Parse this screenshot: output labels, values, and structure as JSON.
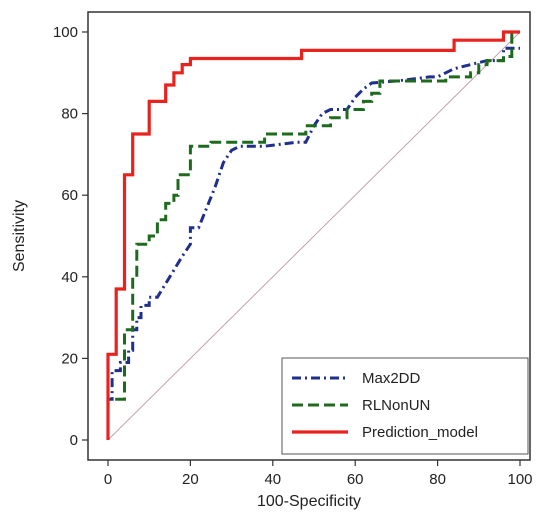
{
  "chart_data": {
    "type": "line",
    "title": "",
    "xlabel": "100-Specificity",
    "ylabel": "Sensitivity",
    "xlim": [
      0,
      100
    ],
    "ylim": [
      0,
      100
    ],
    "x_ticks": [
      "0",
      "20",
      "40",
      "60",
      "80",
      "100"
    ],
    "y_ticks": [
      "0",
      "20",
      "40",
      "60",
      "80",
      "100"
    ],
    "grid": false,
    "legend_position": "bottom-right",
    "reference_line": {
      "x": [
        0,
        100
      ],
      "y": [
        0,
        100
      ],
      "color": "#c4a0a8"
    },
    "series": [
      {
        "name": "Max2DD",
        "color": "#1f2f8c",
        "dash": "dash-dot",
        "points": [
          [
            0,
            0
          ],
          [
            0,
            10
          ],
          [
            1,
            10
          ],
          [
            1,
            17
          ],
          [
            3,
            17
          ],
          [
            3,
            19
          ],
          [
            5,
            19
          ],
          [
            5,
            22
          ],
          [
            6,
            22
          ],
          [
            6,
            27
          ],
          [
            7,
            27
          ],
          [
            7,
            30
          ],
          [
            8,
            30
          ],
          [
            8,
            33
          ],
          [
            10,
            33
          ],
          [
            10,
            35
          ],
          [
            12,
            35
          ],
          [
            15,
            40
          ],
          [
            18,
            45
          ],
          [
            20,
            48
          ],
          [
            20,
            52
          ],
          [
            22,
            52
          ],
          [
            26,
            62
          ],
          [
            28,
            68
          ],
          [
            30,
            71
          ],
          [
            32,
            72
          ],
          [
            38,
            72
          ],
          [
            46,
            73
          ],
          [
            48,
            73
          ],
          [
            50,
            77
          ],
          [
            52,
            80
          ],
          [
            54,
            81
          ],
          [
            58,
            81
          ],
          [
            60,
            84
          ],
          [
            62,
            86
          ],
          [
            64,
            87.5
          ],
          [
            70,
            88
          ],
          [
            78,
            89
          ],
          [
            80,
            89
          ],
          [
            84,
            91
          ],
          [
            88,
            92
          ],
          [
            92,
            93
          ],
          [
            96,
            93
          ],
          [
            96,
            96
          ],
          [
            98,
            96
          ],
          [
            100,
            96
          ]
        ]
      },
      {
        "name": "RLNonUN",
        "color": "#1e6b1e",
        "dash": "dashed",
        "points": [
          [
            0,
            0
          ],
          [
            0,
            10
          ],
          [
            4,
            10
          ],
          [
            4,
            27
          ],
          [
            6,
            27
          ],
          [
            6,
            40
          ],
          [
            7,
            40
          ],
          [
            7,
            48
          ],
          [
            10,
            48
          ],
          [
            10,
            50
          ],
          [
            12,
            50
          ],
          [
            12,
            54
          ],
          [
            14,
            54
          ],
          [
            14,
            58
          ],
          [
            16,
            58
          ],
          [
            16,
            60
          ],
          [
            17,
            60
          ],
          [
            17,
            65
          ],
          [
            20,
            65
          ],
          [
            20,
            72
          ],
          [
            25,
            72
          ],
          [
            25,
            73
          ],
          [
            38,
            73
          ],
          [
            38,
            75
          ],
          [
            48,
            75
          ],
          [
            48,
            77
          ],
          [
            54,
            77
          ],
          [
            54,
            79
          ],
          [
            58,
            79
          ],
          [
            58,
            81
          ],
          [
            62,
            81
          ],
          [
            62,
            83
          ],
          [
            64,
            83
          ],
          [
            64,
            85
          ],
          [
            66,
            85
          ],
          [
            66,
            88
          ],
          [
            82,
            88
          ],
          [
            82,
            89
          ],
          [
            88,
            89
          ],
          [
            88,
            90
          ],
          [
            90,
            90
          ],
          [
            90,
            92
          ],
          [
            92,
            92
          ],
          [
            92,
            93
          ],
          [
            96,
            93
          ],
          [
            96,
            94
          ],
          [
            98,
            94
          ],
          [
            98,
            100
          ],
          [
            100,
            100
          ]
        ]
      },
      {
        "name": "Prediction_model",
        "color": "#e8231e",
        "dash": "solid",
        "points": [
          [
            0,
            0
          ],
          [
            0,
            21
          ],
          [
            2,
            21
          ],
          [
            2,
            37
          ],
          [
            4,
            37
          ],
          [
            4,
            65
          ],
          [
            6,
            65
          ],
          [
            6,
            75
          ],
          [
            10,
            75
          ],
          [
            10,
            83
          ],
          [
            14,
            83
          ],
          [
            14,
            87
          ],
          [
            16,
            87
          ],
          [
            16,
            90
          ],
          [
            18,
            90
          ],
          [
            18,
            92
          ],
          [
            20,
            92
          ],
          [
            20,
            93.5
          ],
          [
            47,
            93.5
          ],
          [
            47,
            95.5
          ],
          [
            84,
            95.5
          ],
          [
            84,
            98
          ],
          [
            96,
            98
          ],
          [
            96,
            100
          ],
          [
            100,
            100
          ]
        ]
      }
    ]
  }
}
